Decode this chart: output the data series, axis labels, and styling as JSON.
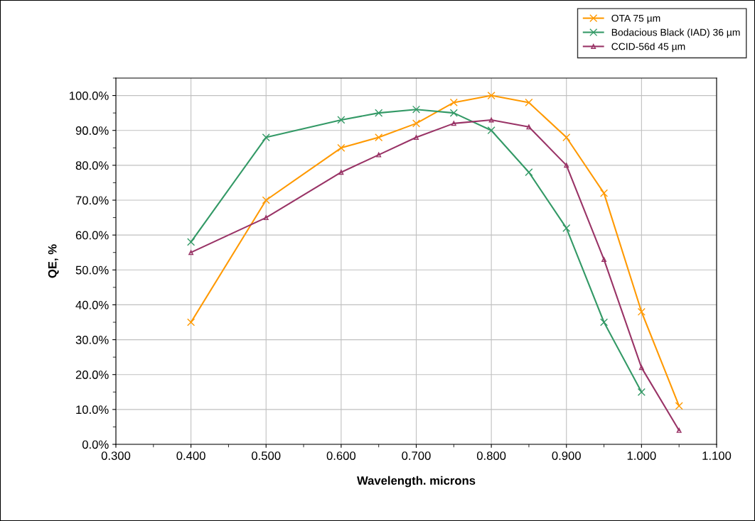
{
  "chart_data": {
    "type": "line",
    "xlabel": "Wavelength. microns",
    "ylabel": "QE, %",
    "x": [
      0.4,
      0.5,
      0.6,
      0.65,
      0.7,
      0.75,
      0.8,
      0.85,
      0.9,
      0.95,
      1.0,
      1.05
    ],
    "series": [
      {
        "name": "OTA 75 µm",
        "color": "#ff9900",
        "marker": "cross",
        "values": [
          35,
          70,
          85,
          88,
          92,
          98,
          100,
          98,
          88,
          72,
          38,
          11
        ]
      },
      {
        "name": "Bodacious Black (IAD) 36 µm",
        "color": "#339966",
        "marker": "cross",
        "values": [
          58,
          88,
          93,
          95,
          96,
          95,
          90,
          78,
          62,
          35,
          15,
          null
        ]
      },
      {
        "name": "CCID-56d 45 µm",
        "color": "#993366",
        "marker": "triangle",
        "values": [
          55,
          65,
          78,
          83,
          88,
          92,
          93,
          91,
          80,
          53,
          22,
          4
        ]
      }
    ],
    "xlim": [
      0.3,
      1.1
    ],
    "xticks": [
      {
        "value": 0.3,
        "label": "0.300"
      },
      {
        "value": 0.4,
        "label": "0.400"
      },
      {
        "value": 0.5,
        "label": "0.500"
      },
      {
        "value": 0.6,
        "label": "0.600"
      },
      {
        "value": 0.7,
        "label": "0.700"
      },
      {
        "value": 0.8,
        "label": "0.800"
      },
      {
        "value": 0.9,
        "label": "0.900"
      },
      {
        "value": 1.0,
        "label": "1.000"
      },
      {
        "value": 1.1,
        "label": "1.100"
      }
    ],
    "ylim": [
      0,
      105
    ],
    "yticks": [
      {
        "value": 0,
        "label": "0.0%"
      },
      {
        "value": 10,
        "label": "10.0%"
      },
      {
        "value": 20,
        "label": "20.0%"
      },
      {
        "value": 30,
        "label": "30.0%"
      },
      {
        "value": 40,
        "label": "40.0%"
      },
      {
        "value": 50,
        "label": "50.0%"
      },
      {
        "value": 60,
        "label": "60.0%"
      },
      {
        "value": 70,
        "label": "70.0%"
      },
      {
        "value": 80,
        "label": "80.0%"
      },
      {
        "value": 90,
        "label": "90.0%"
      },
      {
        "value": 100,
        "label": "100.0%"
      }
    ],
    "grid": true,
    "legend": "top right",
    "line_style": "solid"
  }
}
